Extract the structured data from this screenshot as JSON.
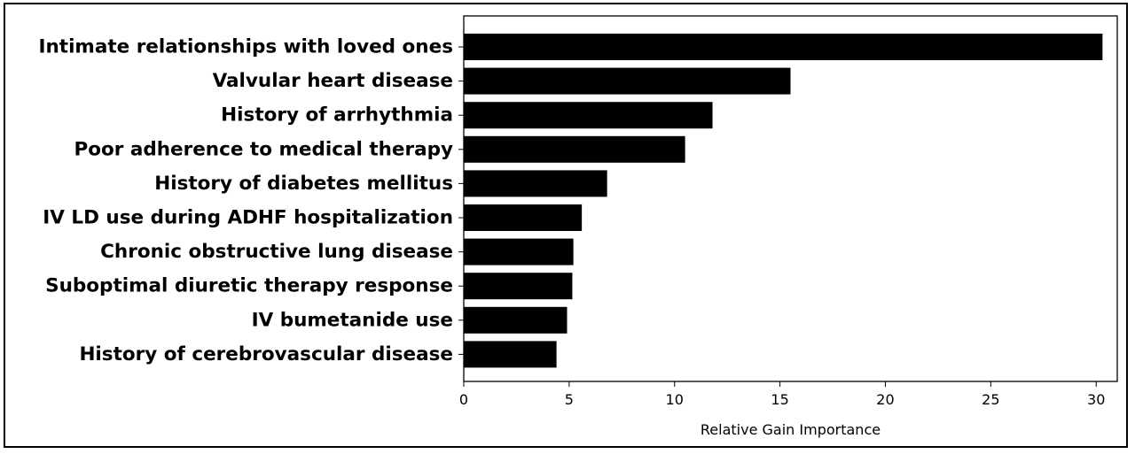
{
  "chart_data": {
    "type": "bar",
    "orientation": "horizontal",
    "title": "",
    "xlabel": "Relative Gain Importance",
    "ylabel": "",
    "xlim": [
      0,
      31
    ],
    "xticks": [
      0,
      5,
      10,
      15,
      20,
      25,
      30
    ],
    "grid": false,
    "legend": "none",
    "bar_color": "#000000",
    "categories": [
      "Intimate relationships with loved ones",
      "Valvular heart disease",
      "History of arrhythmia",
      "Poor adherence to medical therapy",
      "History of diabetes mellitus",
      "IV LD use during ADHF hospitalization",
      "Chronic obstructive lung disease",
      "Suboptimal diuretic therapy response",
      "IV bumetanide use",
      "History of cerebrovascular disease"
    ],
    "values": [
      30.3,
      15.5,
      11.8,
      10.5,
      6.8,
      5.6,
      5.2,
      5.15,
      4.9,
      4.4
    ]
  }
}
